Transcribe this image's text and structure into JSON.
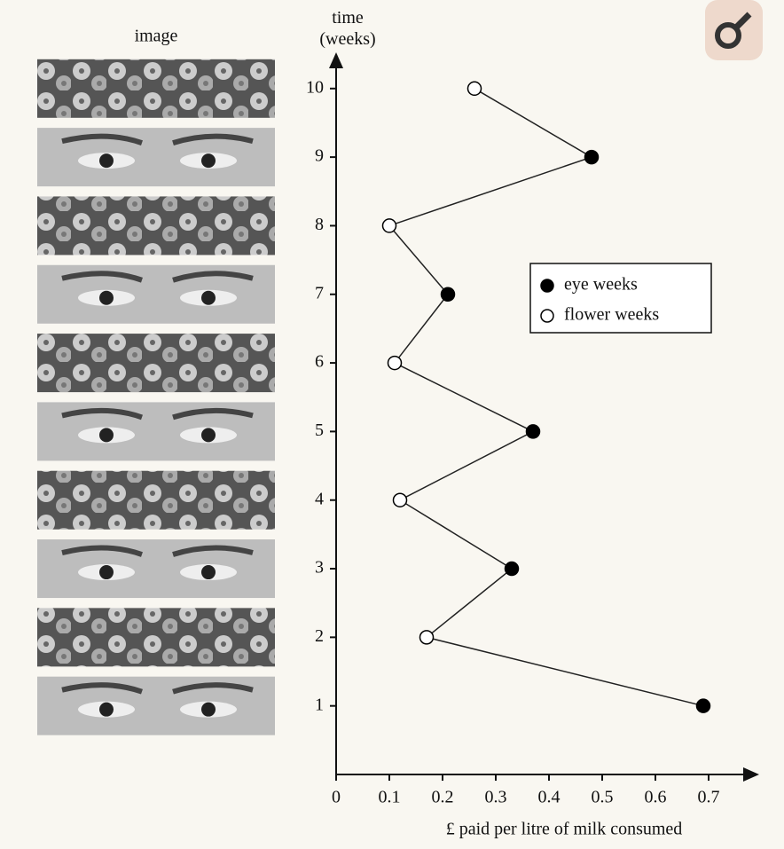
{
  "chart_data": {
    "type": "scatter-line",
    "image_label": "image",
    "xlabel": "£ paid per litre of milk consumed",
    "ylabel": "time (weeks)",
    "xlim": [
      0,
      0.785
    ],
    "xticks": [
      0,
      0.1,
      0.2,
      0.3,
      0.4,
      0.5,
      0.6,
      0.7
    ],
    "ylim": [
      0,
      10.45
    ],
    "yticks": [
      1,
      2,
      3,
      4,
      5,
      6,
      7,
      8,
      9,
      10
    ],
    "legend": "upper right",
    "line_color": "#222",
    "series": [
      {
        "name": "eye weeks",
        "color": "#000",
        "fill": "#000",
        "y": [
          1,
          3,
          5,
          7,
          9
        ],
        "values": [
          0.69,
          0.33,
          0.37,
          0.21,
          0.48
        ]
      },
      {
        "name": "flower weeks",
        "color": "#000",
        "fill": "#fff",
        "y": [
          2,
          4,
          6,
          8,
          10
        ],
        "values": [
          0.17,
          0.12,
          0.11,
          0.1,
          0.26
        ]
      }
    ]
  }
}
